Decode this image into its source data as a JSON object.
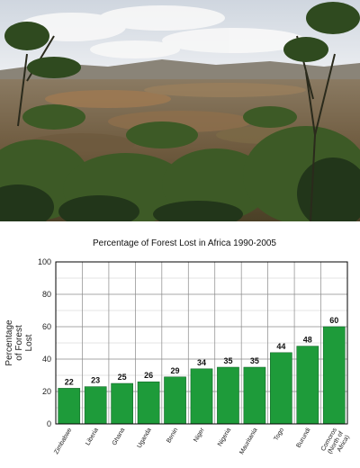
{
  "photo": {
    "colors": {
      "sky": "#e4e8ee",
      "cloud": "#f8f8f8",
      "hills": "#8a8478",
      "field": "#8e6f4c",
      "canopy": "#3d5a26",
      "foliage_dark": "#22361a"
    }
  },
  "chart_data": {
    "type": "bar",
    "title": "Percentage of Forest Lost in Africa 1990-2005",
    "ylabel": "Percentage of Forest Lost",
    "ylabel_lines": [
      "Percentage",
      "of Forest",
      "Lost"
    ],
    "xlabel": "",
    "categories": [
      "Zimbabwe",
      "Liberia",
      "Ghana",
      "Uganda",
      "Benin",
      "Niger",
      "Nigeria",
      "Mauritania",
      "Togo",
      "Burundi",
      "Comoros (North of Africa)"
    ],
    "category_lines": [
      [
        "Zimbabwe"
      ],
      [
        "Liberia"
      ],
      [
        "Ghana"
      ],
      [
        "Uganda"
      ],
      [
        "Benin"
      ],
      [
        "Niger"
      ],
      [
        "Nigeria"
      ],
      [
        "Mauritania"
      ],
      [
        "Togo"
      ],
      [
        "Burundi"
      ],
      [
        "Comoros",
        "(North of",
        "Africa)"
      ]
    ],
    "values": [
      22,
      23,
      25,
      26,
      29,
      34,
      35,
      35,
      44,
      48,
      60
    ],
    "value_labels": [
      "22",
      "23",
      "25",
      "26",
      "29",
      "34",
      "35",
      "35",
      "44",
      "48",
      "60"
    ],
    "ylim": [
      0,
      100
    ],
    "yticks": [
      0,
      20,
      40,
      60,
      80,
      100
    ],
    "ytick_labels": [
      "0",
      "20",
      "40",
      "60",
      "80",
      "100"
    ],
    "grid": true,
    "legend": "none",
    "bar_color": "#1e9b3a"
  }
}
